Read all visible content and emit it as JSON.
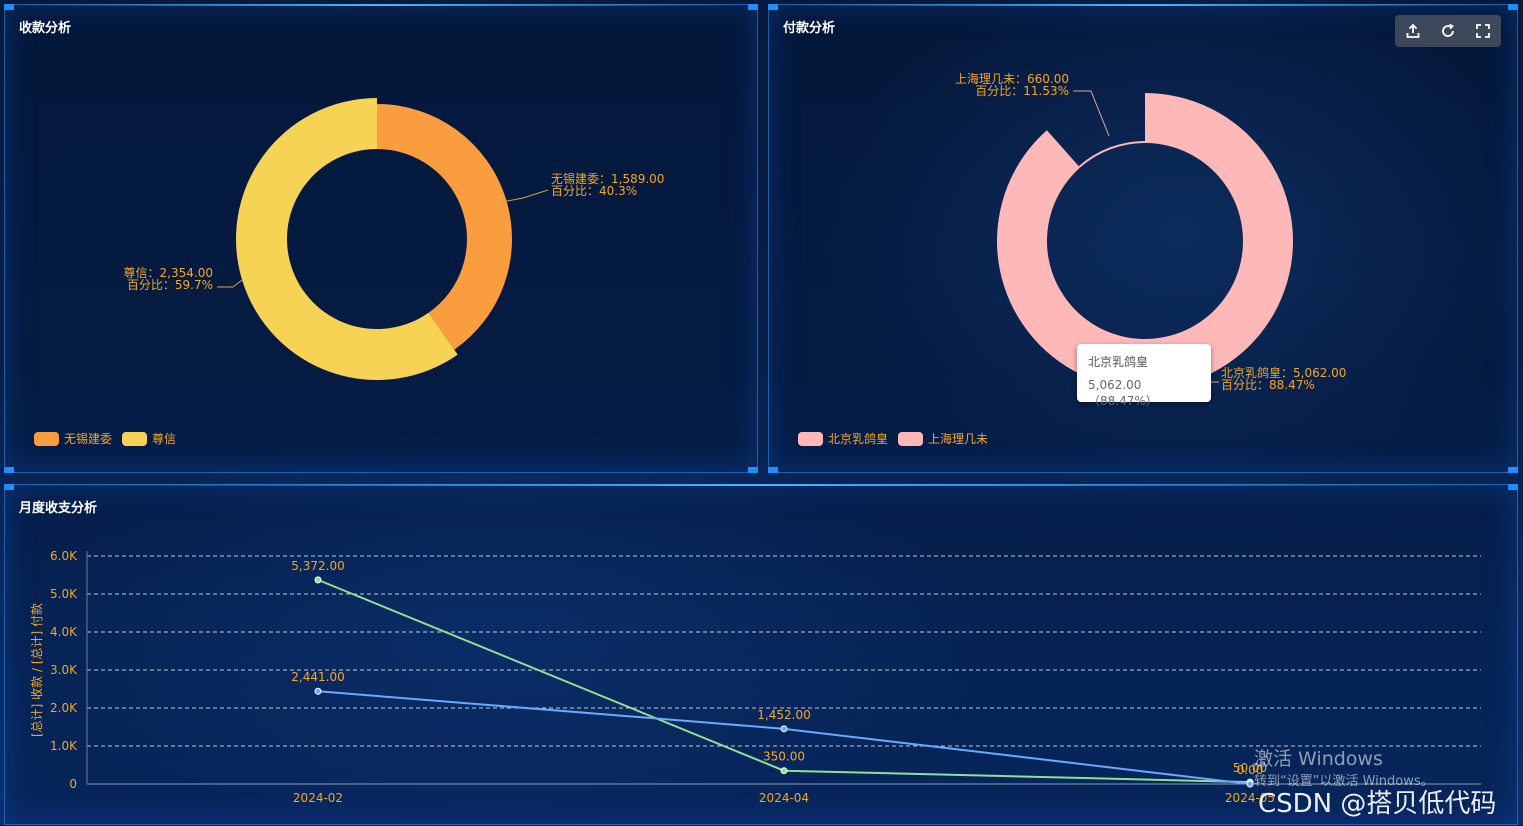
{
  "panels": {
    "receipt": {
      "title": "收款分析"
    },
    "payment": {
      "title": "付款分析"
    },
    "monthly": {
      "title": "月度收支分析"
    }
  },
  "toolbox": {
    "icons": [
      "export-icon",
      "refresh-icon",
      "fullscreen-icon"
    ]
  },
  "tooltip": {
    "name": "北京乳鸽皇",
    "value": "5,062.00（88.47%）"
  },
  "watermark": {
    "activate_line1": "激活 Windows",
    "activate_line2": "转到“设置”以激活 Windows。",
    "csdn": "CSDN @搭贝低代码"
  },
  "chart_data": [
    {
      "type": "pie",
      "donut": true,
      "title": "收款分析",
      "slices": [
        {
          "name": "无锡建委",
          "value": 1589.0,
          "label": "无锡建委：1,589.00",
          "percent_label": "百分比：40.3%",
          "color": "#f99d3e"
        },
        {
          "name": "尊信",
          "value": 2354.0,
          "label": "尊信：2,354.00",
          "percent_label": "百分比：59.7%",
          "color": "#f6d355"
        }
      ],
      "legend": [
        "无锡建委",
        "尊信"
      ],
      "legend_position": "bottom-left"
    },
    {
      "type": "pie",
      "donut": true,
      "title": "付款分析",
      "slices": [
        {
          "name": "北京乳鸽皇",
          "value": 5062.0,
          "label": "北京乳鸽皇：5,062.00",
          "percent_label": "百分比：88.47%",
          "color": "#ffb8b8"
        },
        {
          "name": "上海理几未",
          "value": 660.0,
          "label": "上海理几未：660.00",
          "percent_label": "百分比：11.53%",
          "color": "#ffb8b8"
        }
      ],
      "legend": [
        "北京乳鸽皇",
        "上海理几未"
      ],
      "legend_position": "bottom-left"
    },
    {
      "type": "line",
      "title": "月度收支分析",
      "ylabel": "[总计] 收款 / [总计] 付款",
      "ylim": [
        0,
        6000
      ],
      "y_ticks": [
        "0",
        "1.0K",
        "2.0K",
        "3.0K",
        "4.0K",
        "5.0K",
        "6.0K"
      ],
      "x": [
        "2024-02",
        "2024-04",
        "2024-05"
      ],
      "grid": true,
      "series": [
        {
          "values": [
            5372.0,
            350.0,
            50.0
          ],
          "labels": [
            "5,372.00",
            "350.00",
            "50.00"
          ],
          "color": "#8fe08f"
        },
        {
          "values": [
            2441.0,
            1452.0,
            0.0
          ],
          "labels": [
            "2,441.00",
            "1,452.00",
            "0.00"
          ],
          "color": "#6aa9ff"
        }
      ]
    }
  ]
}
